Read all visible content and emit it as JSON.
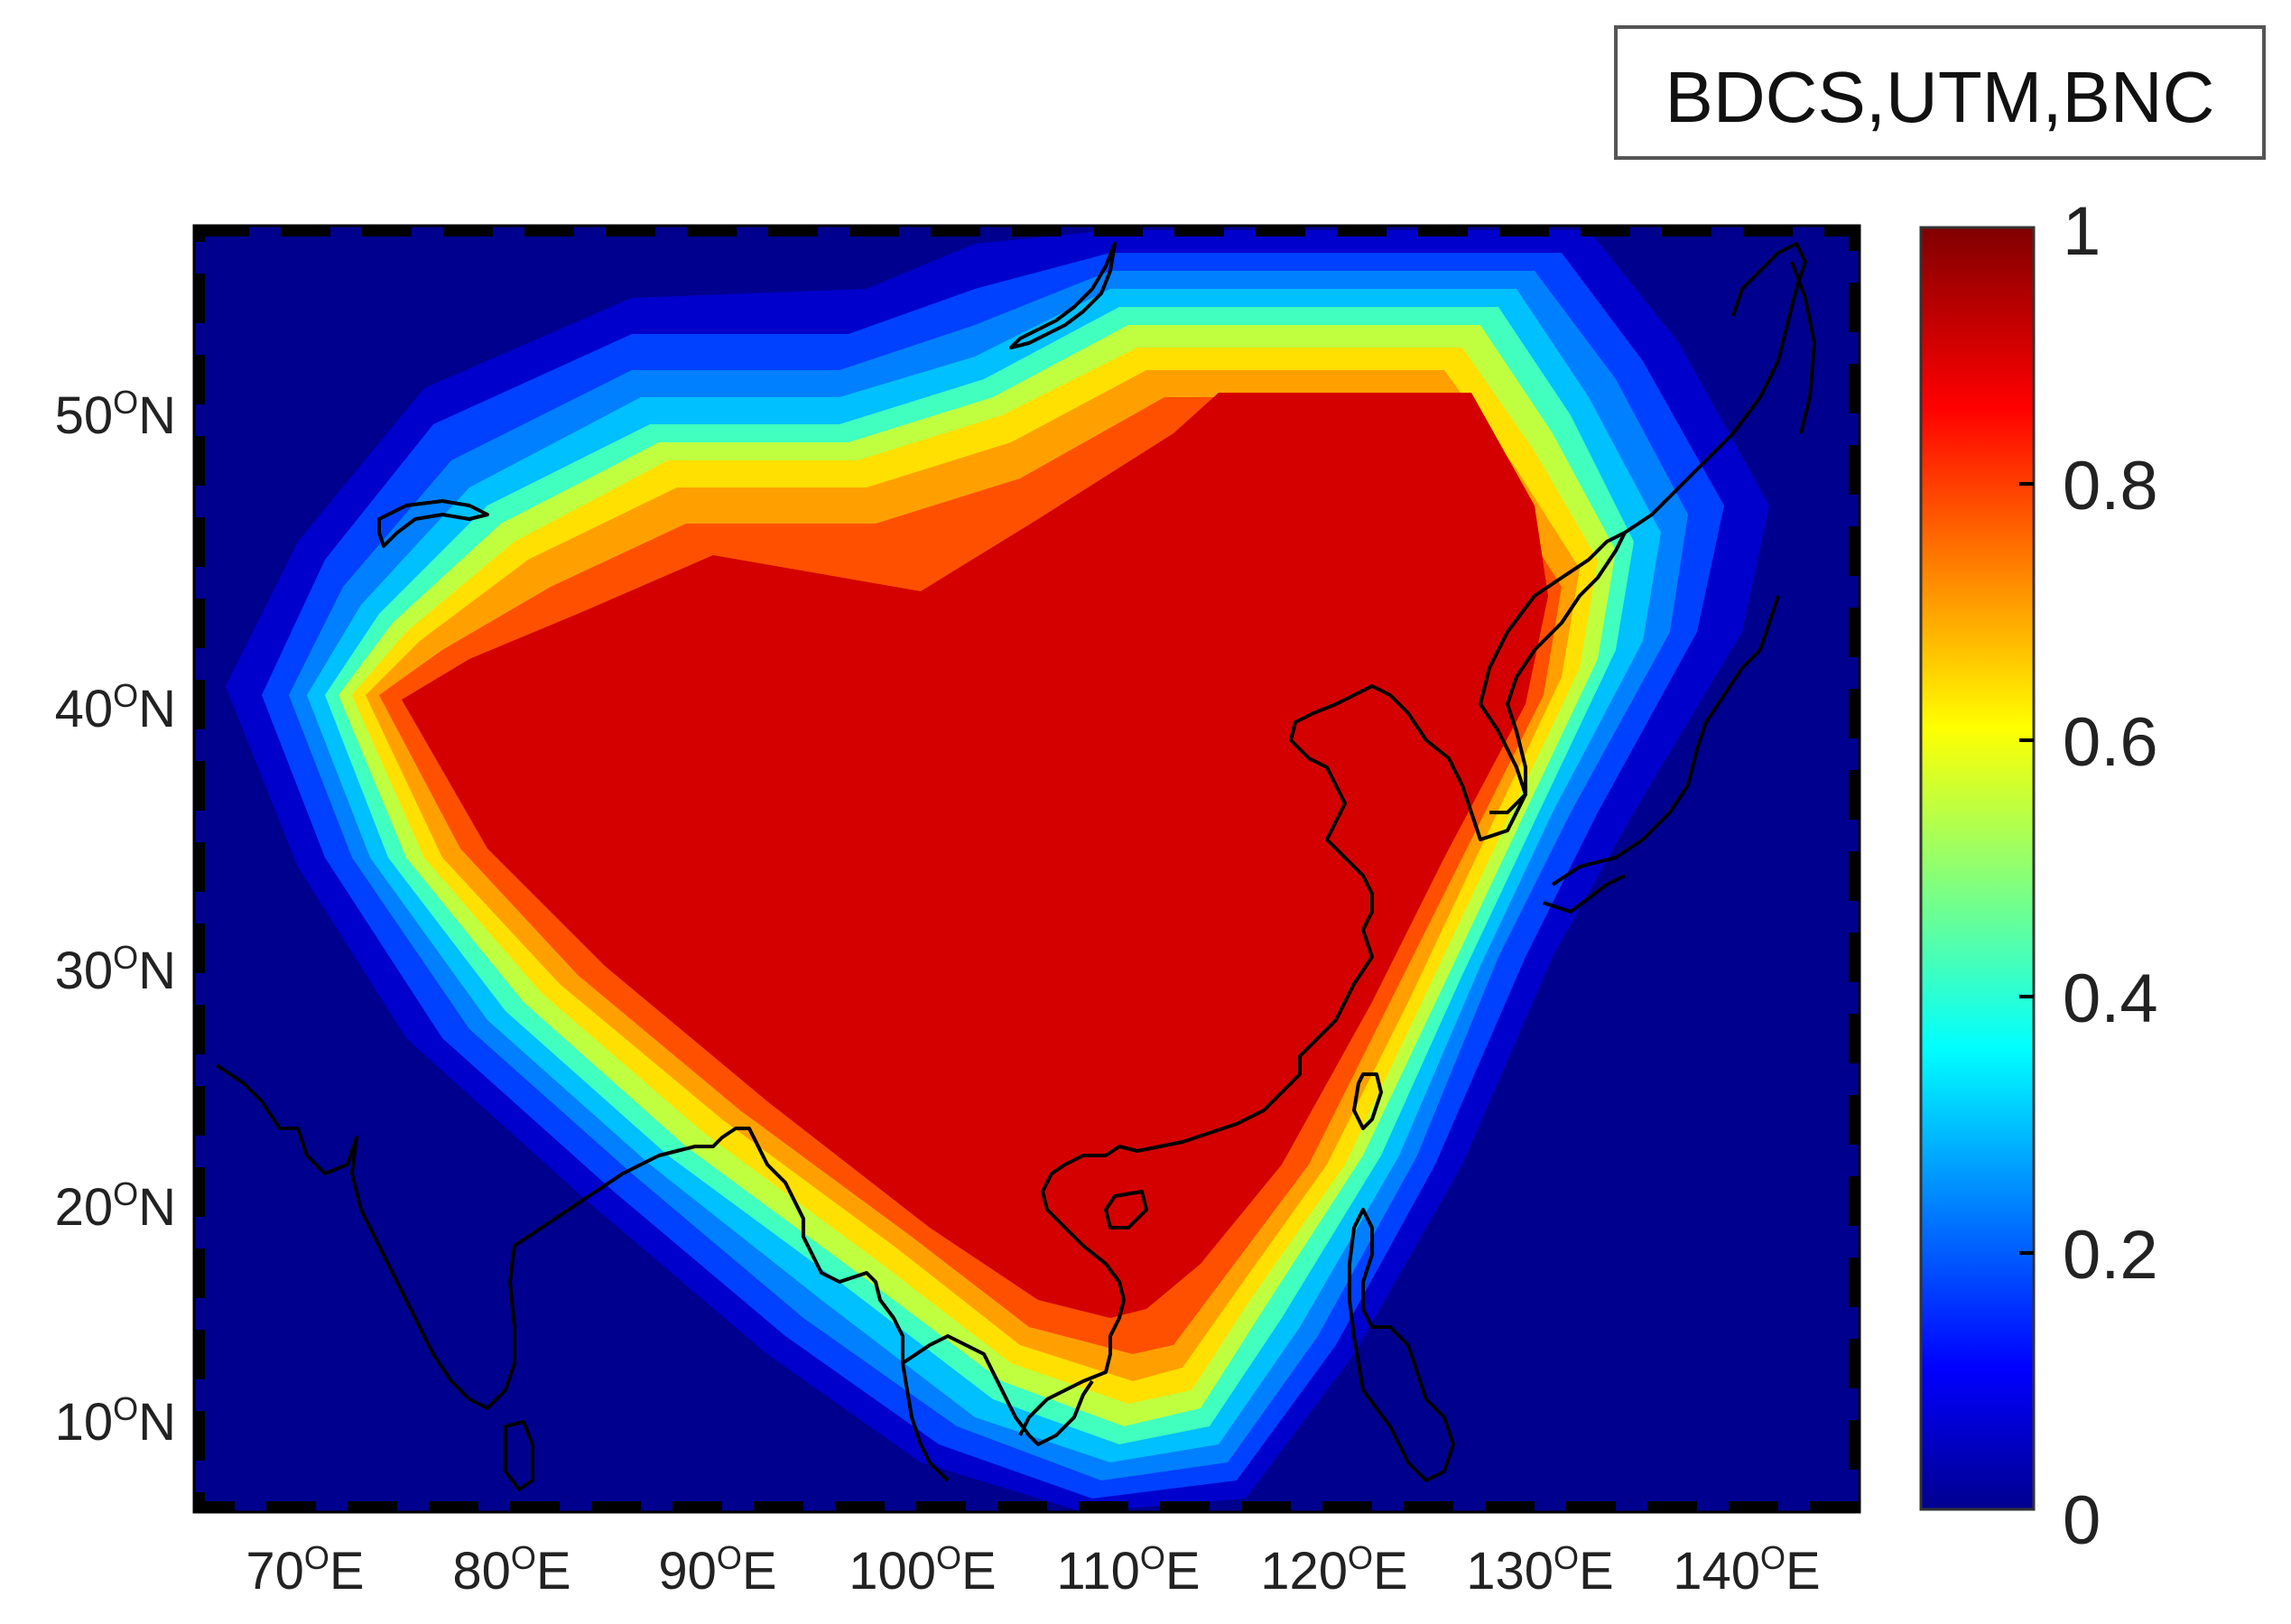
{
  "title_box": {
    "text": "BDCS,UTM,BNC"
  },
  "map": {
    "lon_labels": [
      {
        "deg": "70",
        "sup": "O",
        "dir": "E"
      },
      {
        "deg": "80",
        "sup": "O",
        "dir": "E"
      },
      {
        "deg": "90",
        "sup": "O",
        "dir": "E"
      },
      {
        "deg": "100",
        "sup": "O",
        "dir": "E"
      },
      {
        "deg": "110",
        "sup": "O",
        "dir": "E"
      },
      {
        "deg": "120",
        "sup": "O",
        "dir": "E"
      },
      {
        "deg": "130",
        "sup": "O",
        "dir": "E"
      },
      {
        "deg": "140",
        "sup": "O",
        "dir": "E"
      }
    ],
    "lat_labels": [
      {
        "deg": "10",
        "sup": "O",
        "dir": "N"
      },
      {
        "deg": "20",
        "sup": "O",
        "dir": "N"
      },
      {
        "deg": "30",
        "sup": "O",
        "dir": "N"
      },
      {
        "deg": "40",
        "sup": "O",
        "dir": "N"
      },
      {
        "deg": "50",
        "sup": "O",
        "dir": "N"
      }
    ],
    "lon_range": [
      65,
      145
    ],
    "lat_range": [
      5,
      55
    ],
    "field": "availability contour, 1.0 over China core decreasing to 0 outward",
    "colors": {
      "background": "#00008f",
      "levels": [
        "#0000cc",
        "#0040ff",
        "#0080ff",
        "#00c0ff",
        "#40ffbf",
        "#bfff40",
        "#ffe000",
        "#ffa000",
        "#ff5000",
        "#d40000"
      ],
      "coastline": "#000000"
    }
  },
  "colorbar": {
    "labels": [
      "1",
      "0.8",
      "0.6",
      "0.4",
      "0.2",
      "0"
    ],
    "range": [
      0,
      1
    ],
    "colormap": "jet"
  }
}
